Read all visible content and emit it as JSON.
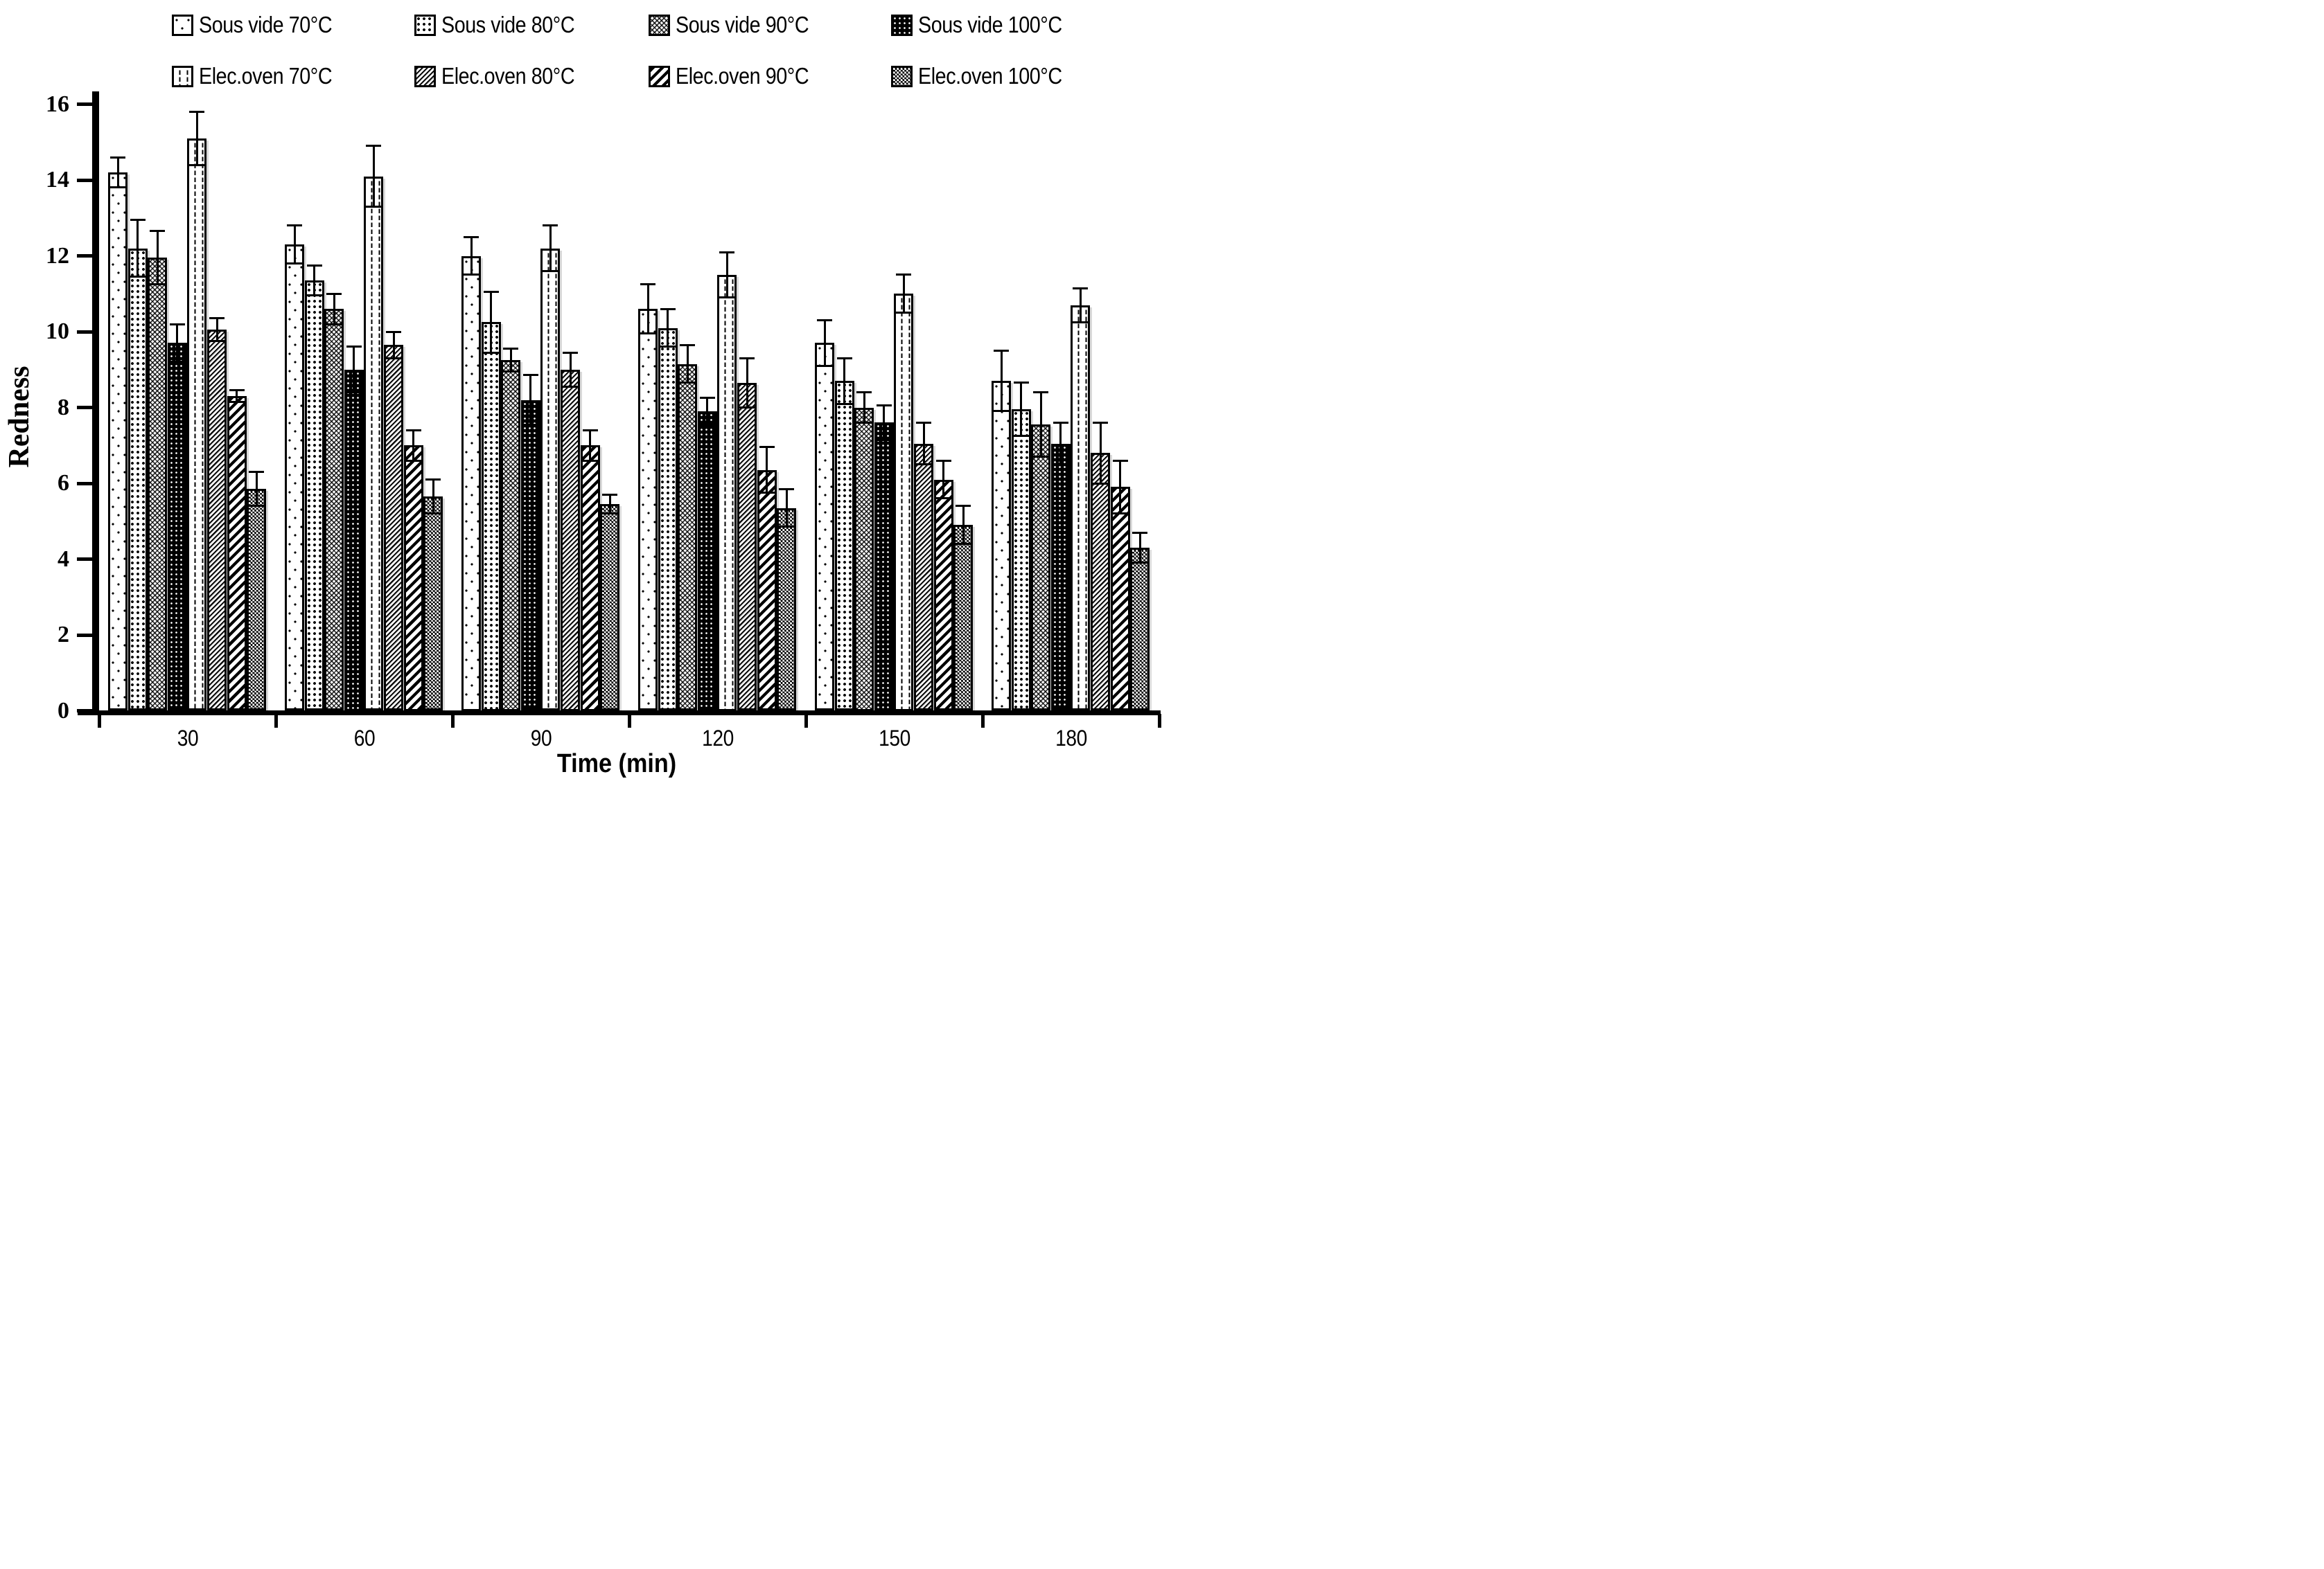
{
  "page": {
    "background": "#ffffff",
    "foreground": "#000000",
    "shadow": "#d9d9d9"
  },
  "chart_data": {
    "type": "bar",
    "title": "",
    "xlabel": "Time (min)",
    "ylabel": "Redness",
    "categories": [
      "30",
      "60",
      "90",
      "120",
      "150",
      "180"
    ],
    "ylim": [
      0,
      16
    ],
    "yticks": [
      0,
      2,
      4,
      6,
      8,
      10,
      12,
      14,
      16
    ],
    "grid": false,
    "legend_position": "top",
    "error_bars": true,
    "series": [
      {
        "name": "Sous vide 70°C",
        "pattern": "sv70",
        "values": [
          14.2,
          12.3,
          12.0,
          10.6,
          9.7,
          8.7
        ],
        "errors": [
          0.4,
          0.5,
          0.5,
          0.65,
          0.6,
          0.8
        ]
      },
      {
        "name": "Sous vide 80°C",
        "pattern": "sv80",
        "values": [
          12.2,
          11.35,
          10.25,
          10.1,
          8.7,
          7.95
        ],
        "errors": [
          0.75,
          0.4,
          0.8,
          0.5,
          0.6,
          0.7
        ]
      },
      {
        "name": "Sous vide 90°C",
        "pattern": "sv90",
        "values": [
          11.95,
          10.6,
          9.25,
          9.15,
          8.0,
          7.55
        ],
        "errors": [
          0.7,
          0.4,
          0.3,
          0.5,
          0.4,
          0.85
        ]
      },
      {
        "name": "Sous vide 100°C",
        "pattern": "sv100",
        "values": [
          9.7,
          9.0,
          8.2,
          7.9,
          7.6,
          7.05
        ],
        "errors": [
          0.5,
          0.6,
          0.65,
          0.35,
          0.45,
          0.55
        ]
      },
      {
        "name": "Elec.oven 70°C",
        "pattern": "eo70",
        "values": [
          15.1,
          14.1,
          12.2,
          11.5,
          11.0,
          10.7
        ],
        "errors": [
          0.7,
          0.8,
          0.6,
          0.6,
          0.5,
          0.45
        ]
      },
      {
        "name": "Elec.oven 80°C",
        "pattern": "eo80",
        "values": [
          10.05,
          9.65,
          9.0,
          8.65,
          7.05,
          6.8
        ],
        "errors": [
          0.3,
          0.35,
          0.45,
          0.65,
          0.55,
          0.8
        ]
      },
      {
        "name": "Elec.oven 90°C",
        "pattern": "eo90",
        "values": [
          8.3,
          7.0,
          7.0,
          6.35,
          6.1,
          5.9
        ],
        "errors": [
          0.15,
          0.4,
          0.4,
          0.6,
          0.5,
          0.7
        ]
      },
      {
        "name": "Elec.oven 100°C",
        "pattern": "eo100",
        "values": [
          5.85,
          5.65,
          5.45,
          5.35,
          4.9,
          4.3
        ],
        "errors": [
          0.45,
          0.45,
          0.25,
          0.5,
          0.5,
          0.4
        ]
      }
    ]
  }
}
